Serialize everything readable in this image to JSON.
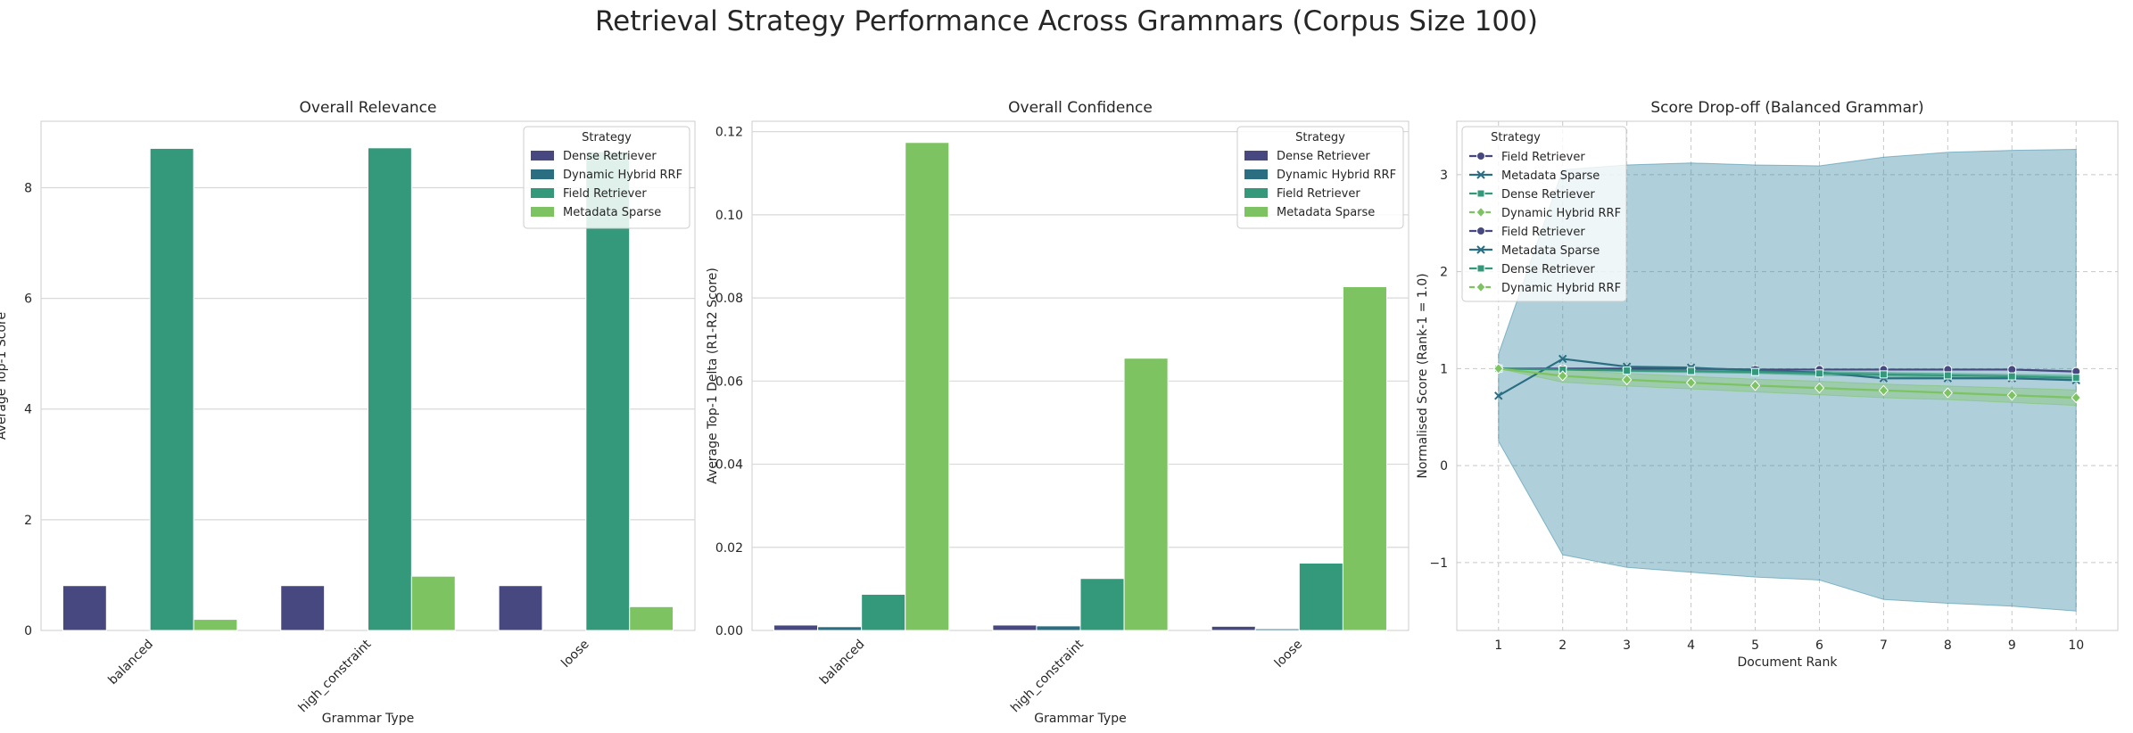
{
  "figure_title": "Retrieval Strategy Performance Across Grammars (Corpus Size 100)",
  "colors": {
    "dense": "#46487f",
    "hybrid": "#2b6e82",
    "field": "#34997a",
    "sparse": "#7dc362",
    "band": "#2e83a0"
  },
  "legend_title": "Strategy",
  "chart_data": [
    {
      "type": "bar",
      "title": "Overall Relevance",
      "xlabel": "Grammar Type",
      "ylabel": "Average Top-1 Score",
      "categories": [
        "balanced",
        "high_constraint",
        "loose"
      ],
      "ylim": [
        0,
        9.2
      ],
      "yticks": [
        "0",
        "2",
        "4",
        "6",
        "8"
      ],
      "legend": "top-right",
      "series": [
        {
          "name": "Dense Retriever",
          "color": "#46487f",
          "values": [
            0.81,
            0.81,
            0.81
          ]
        },
        {
          "name": "Dynamic Hybrid RRF",
          "color": "#2b6e82",
          "values": [
            0,
            0,
            0
          ]
        },
        {
          "name": "Field Retriever",
          "color": "#34997a",
          "values": [
            8.71,
            8.72,
            8.65
          ]
        },
        {
          "name": "Metadata Sparse",
          "color": "#7dc362",
          "values": [
            0.2,
            0.98,
            0.43
          ]
        }
      ]
    },
    {
      "type": "bar",
      "title": "Overall Confidence",
      "xlabel": "Grammar Type",
      "ylabel": "Average Top-1 Delta (R1-R2 Score)",
      "categories": [
        "balanced",
        "high_constraint",
        "loose"
      ],
      "ylim": [
        0,
        0.1225
      ],
      "yticks": [
        "0.00",
        "0.02",
        "0.04",
        "0.06",
        "0.08",
        "0.10",
        "0.12"
      ],
      "legend": "top-right",
      "series": [
        {
          "name": "Dense Retriever",
          "color": "#46487f",
          "values": [
            0.0013,
            0.0013,
            0.001
          ]
        },
        {
          "name": "Dynamic Hybrid RRF",
          "color": "#2b6e82",
          "values": [
            0.0009,
            0.0011,
            0.0004
          ]
        },
        {
          "name": "Field Retriever",
          "color": "#34997a",
          "values": [
            0.0087,
            0.0125,
            0.0162
          ]
        },
        {
          "name": "Metadata Sparse",
          "color": "#7dc362",
          "values": [
            0.1174,
            0.0655,
            0.0827
          ]
        }
      ]
    },
    {
      "type": "line",
      "title": "Score Drop-off (Balanced Grammar)",
      "xlabel": "Document Rank",
      "ylabel": "Normalised Score (Rank-1 = 1.0)",
      "x": [
        1,
        2,
        3,
        4,
        5,
        6,
        7,
        8,
        9,
        10
      ],
      "xlim": [
        0.35,
        10.65
      ],
      "ylim": [
        -1.7,
        3.55
      ],
      "yticks": [
        {
          "v": -1,
          "label": "−1"
        },
        {
          "v": 0,
          "label": "0"
        },
        {
          "v": 1,
          "label": "1"
        },
        {
          "v": 2,
          "label": "2"
        },
        {
          "v": 3,
          "label": "3"
        }
      ],
      "legend": "top-left",
      "legend_entries": [
        "Field Retriever",
        "Metadata Sparse",
        "Dense Retriever",
        "Dynamic Hybrid RRF",
        "Field Retriever",
        "Metadata Sparse",
        "Dense Retriever",
        "Dynamic Hybrid RRF"
      ],
      "bands": [
        {
          "series": "Metadata Sparse",
          "color": "#2e83a0",
          "upper": [
            1.15,
            3.05,
            3.1,
            3.12,
            3.1,
            3.09,
            3.18,
            3.23,
            3.25,
            3.26
          ],
          "lower": [
            0.25,
            -0.92,
            -1.05,
            -1.1,
            -1.15,
            -1.18,
            -1.38,
            -1.42,
            -1.45,
            -1.5
          ]
        },
        {
          "series": "Dense Retriever",
          "color": "#34997a",
          "upper": [
            1.0,
            1.0,
            0.99,
            0.99,
            0.98,
            0.97,
            0.96,
            0.95,
            0.94,
            0.93
          ],
          "lower": [
            1.0,
            0.99,
            0.97,
            0.96,
            0.95,
            0.93,
            0.92,
            0.91,
            0.9,
            0.88
          ]
        },
        {
          "series": "Dynamic Hybrid RRF",
          "color": "#7dc362",
          "upper": [
            1.0,
            0.99,
            0.95,
            0.92,
            0.89,
            0.87,
            0.84,
            0.82,
            0.8,
            0.78
          ],
          "lower": [
            1.0,
            0.86,
            0.82,
            0.79,
            0.76,
            0.73,
            0.7,
            0.68,
            0.65,
            0.62
          ]
        }
      ],
      "series": [
        {
          "name": "Field Retriever",
          "color": "#46487f",
          "marker": "circle",
          "y": [
            1.0,
            1.0,
            1.0,
            1.0,
            0.99,
            0.99,
            0.99,
            0.99,
            0.99,
            0.97
          ]
        },
        {
          "name": "Metadata Sparse",
          "color": "#2b6e82",
          "marker": "x",
          "y": [
            0.72,
            1.1,
            1.02,
            1.01,
            0.98,
            0.96,
            0.9,
            0.9,
            0.9,
            0.88
          ]
        },
        {
          "name": "Dense Retriever",
          "color": "#34997a",
          "marker": "square",
          "y": [
            1.0,
            0.99,
            0.98,
            0.975,
            0.965,
            0.95,
            0.94,
            0.93,
            0.92,
            0.905
          ]
        },
        {
          "name": "Dynamic Hybrid RRF",
          "color": "#7dc362",
          "marker": "diamond",
          "y": [
            1.0,
            0.925,
            0.885,
            0.855,
            0.825,
            0.8,
            0.775,
            0.75,
            0.725,
            0.7
          ]
        }
      ]
    }
  ]
}
